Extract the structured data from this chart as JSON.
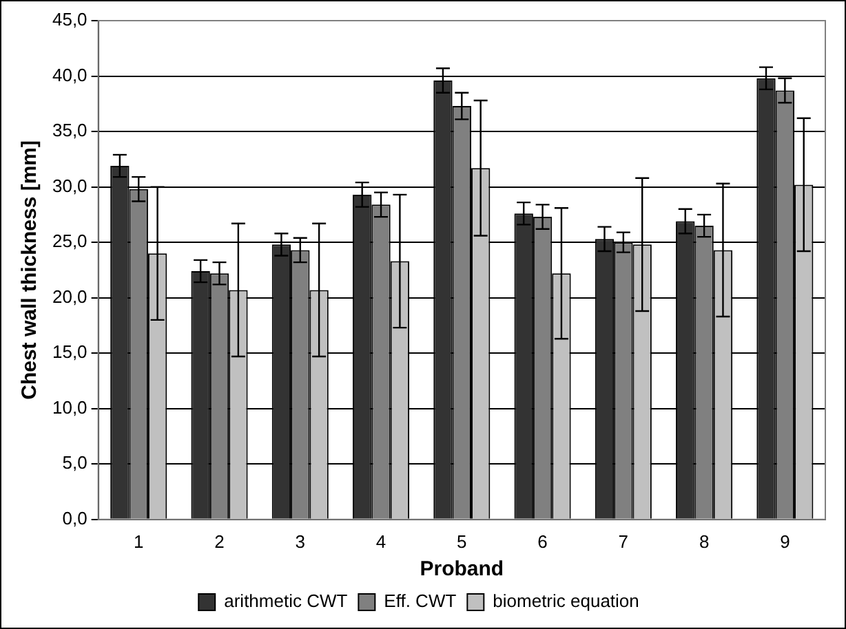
{
  "chart_data": {
    "type": "bar",
    "xlabel": "Proband",
    "ylabel": "Chest wall thickness [mm]",
    "categories": [
      "1",
      "2",
      "3",
      "4",
      "5",
      "6",
      "7",
      "8",
      "9"
    ],
    "series": [
      {
        "name": "arithmetic CWT",
        "color": "#333333",
        "values": [
          31.9,
          22.4,
          24.8,
          29.3,
          39.6,
          27.6,
          25.3,
          26.9,
          39.8
        ],
        "errors": [
          1.0,
          1.0,
          1.0,
          1.1,
          1.1,
          1.0,
          1.1,
          1.1,
          1.0
        ]
      },
      {
        "name": "Eff. CWT",
        "color": "#808080",
        "values": [
          29.8,
          22.2,
          24.3,
          28.4,
          37.3,
          27.3,
          25.0,
          26.5,
          38.7
        ],
        "errors": [
          1.1,
          1.0,
          1.1,
          1.1,
          1.2,
          1.1,
          0.9,
          1.0,
          1.1
        ]
      },
      {
        "name": "biometric equation",
        "color": "#c0c0c0",
        "values": [
          24.0,
          20.7,
          20.7,
          23.3,
          31.7,
          22.2,
          24.8,
          24.3,
          30.2
        ],
        "errors": [
          6.0,
          6.0,
          6.0,
          6.0,
          6.1,
          5.9,
          6.0,
          6.0,
          6.0
        ]
      }
    ],
    "ylim": [
      0,
      45
    ],
    "yticks": [
      {
        "value": 0,
        "label": "0,0"
      },
      {
        "value": 5,
        "label": "5,0"
      },
      {
        "value": 10,
        "label": "10,0"
      },
      {
        "value": 15,
        "label": "15,0"
      },
      {
        "value": 20,
        "label": "20,0"
      },
      {
        "value": 25,
        "label": "25,0"
      },
      {
        "value": 30,
        "label": "30,0"
      },
      {
        "value": 35,
        "label": "35,0"
      },
      {
        "value": 40,
        "label": "40,0"
      },
      {
        "value": 45,
        "label": "45,0"
      }
    ],
    "grid": "y",
    "legend": "bottom"
  }
}
